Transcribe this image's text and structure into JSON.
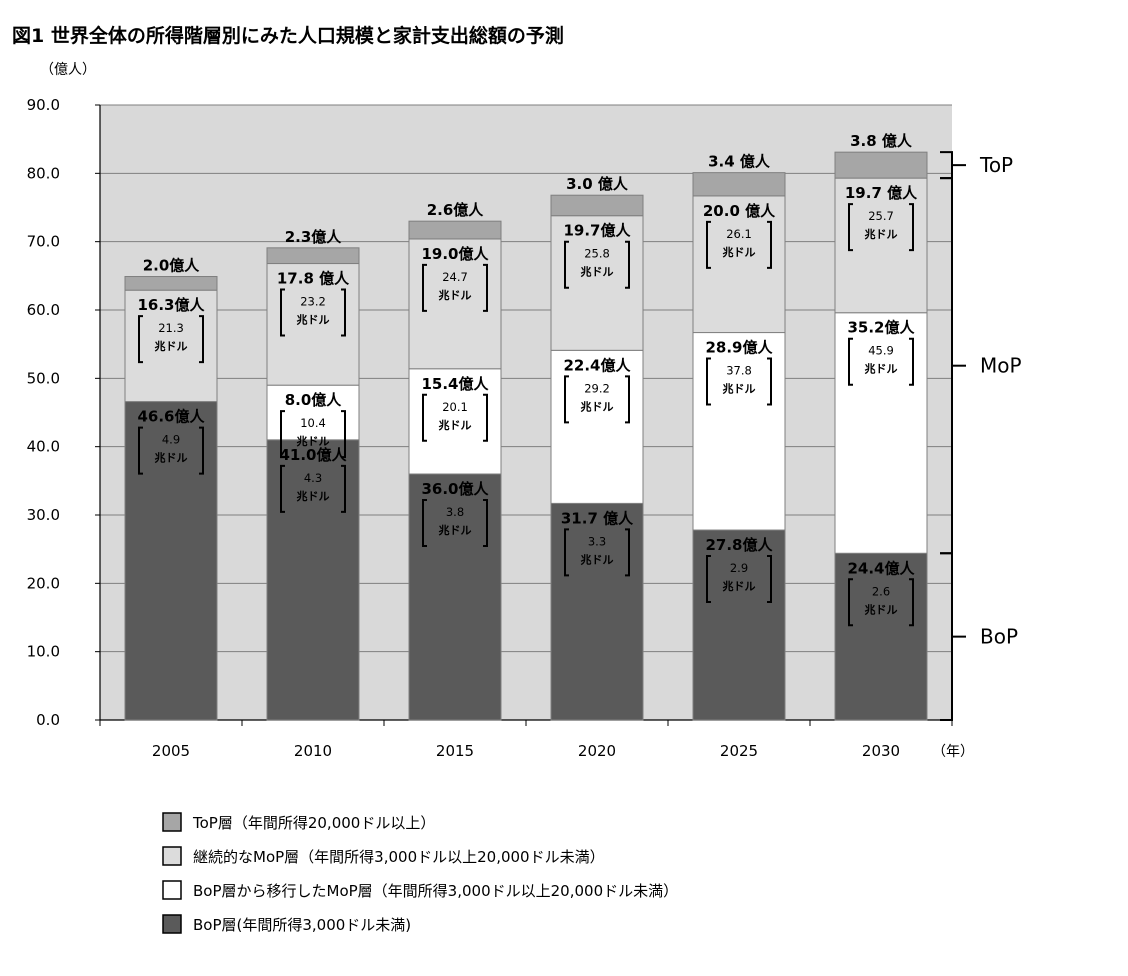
{
  "chart_data": {
    "type": "bar",
    "stacked": true,
    "title": "図1 世界全体の所得階層別にみた人口規模と家計支出総額の予測",
    "ylabel": "（億人）",
    "xlabel": "（年）",
    "ylim": [
      0,
      90
    ],
    "yticks": [
      "0.0",
      "10.0",
      "20.0",
      "30.0",
      "40.0",
      "50.0",
      "60.0",
      "70.0",
      "80.0",
      "90.0"
    ],
    "grid": true,
    "categories": [
      "2005",
      "2010",
      "2015",
      "2020",
      "2025",
      "2030"
    ],
    "series": [
      {
        "name": "BoP層(年間所得3,000ドル未満)",
        "color": "#5a5a5a",
        "values": [
          46.6,
          41.0,
          36.0,
          31.7,
          27.8,
          24.4
        ],
        "labels": [
          "46.6億人",
          "41.0億人",
          "36.0億人",
          "31.7 億人",
          "27.8億人",
          "24.4億人"
        ],
        "spending": [
          "4.9",
          "4.3",
          "3.8",
          "3.3",
          "2.9",
          "2.6"
        ]
      },
      {
        "name": "BoP層から移行したMoP層（年間所得3,000ドル以上20,000ドル未満）",
        "color": "#ffffff",
        "values": [
          0,
          8.0,
          15.4,
          22.4,
          28.9,
          35.2
        ],
        "labels": [
          "",
          "8.0億人",
          "15.4億人",
          "22.4億人",
          "28.9億人",
          "35.2億人"
        ],
        "spending": [
          "",
          "10.4",
          "20.1",
          "29.2",
          "37.8",
          "45.9"
        ]
      },
      {
        "name": "継続的なMoP層（年間所得3,000ドル以上20,000ドル未満）",
        "color": "#dcdcdc",
        "values": [
          16.3,
          17.8,
          19.0,
          19.7,
          20.0,
          19.7
        ],
        "labels": [
          "16.3億人",
          "17.8 億人",
          "19.0億人",
          "19.7億人",
          "20.0 億人",
          "19.7 億人"
        ],
        "spending": [
          "21.3",
          "23.2",
          "24.7",
          "25.8",
          "26.1",
          "25.7"
        ]
      },
      {
        "name": "ToP層（年間所得20,000ドル以上）",
        "color": "#a6a6a6",
        "values": [
          2.0,
          2.3,
          2.6,
          3.0,
          3.4,
          3.8
        ],
        "labels": [
          "2.0億人",
          "2.3億人",
          "2.6億人",
          "3.0 億人",
          "3.4 億人",
          "3.8 億人"
        ]
      }
    ],
    "spending_unit": "兆ドル",
    "groups": [
      "ToP",
      "MoP",
      "BoP"
    ],
    "legend_order": [
      3,
      2,
      1,
      0
    ],
    "legend_position": "bottom"
  }
}
